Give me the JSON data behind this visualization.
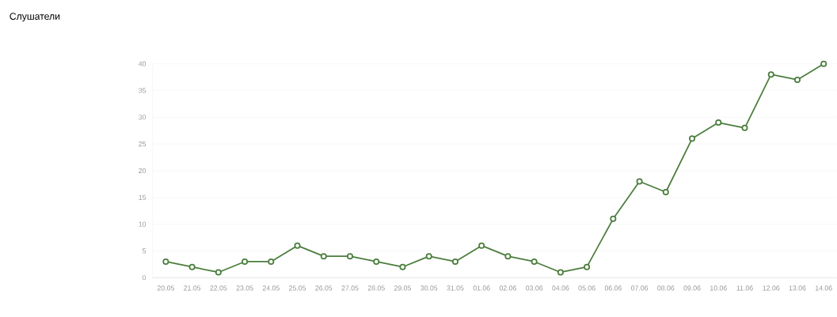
{
  "chart_data": {
    "type": "line",
    "title": "Слушатели",
    "categories": [
      "20.05",
      "21.05",
      "22.05",
      "23.05",
      "24.05",
      "25.05",
      "26.05",
      "27.05",
      "28.05",
      "29.05",
      "30.05",
      "31.05",
      "01.06",
      "02.06",
      "03.06",
      "04.06",
      "05.06",
      "06.06",
      "07.06",
      "08.06",
      "09.06",
      "10.06",
      "11.06",
      "12.06",
      "13.06",
      "14.06"
    ],
    "values": [
      3,
      2,
      1,
      3,
      3,
      6,
      4,
      4,
      3,
      2,
      4,
      3,
      6,
      4,
      3,
      1,
      2,
      11,
      18,
      16,
      26,
      29,
      28,
      38,
      37,
      40
    ],
    "color": "#4a7d3c",
    "ylim": [
      0,
      40
    ],
    "yticks": [
      0,
      5,
      10,
      15,
      20,
      25,
      30,
      35,
      40
    ],
    "grid": "y",
    "marker": "circle",
    "line_style": "solid"
  }
}
